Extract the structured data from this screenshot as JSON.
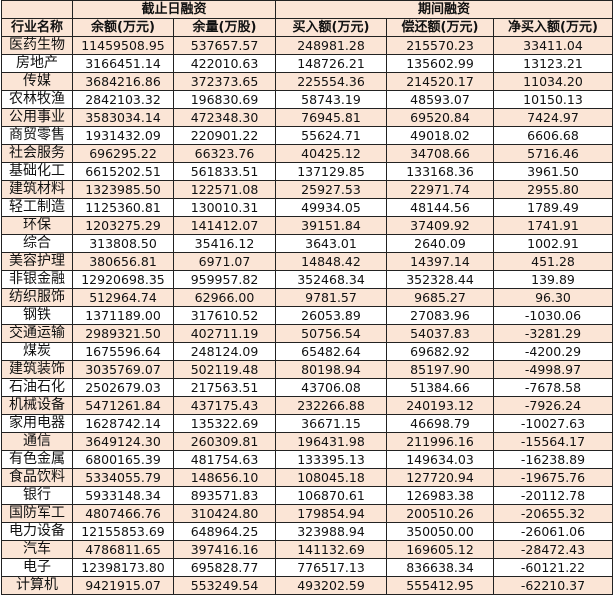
{
  "header": {
    "group_1": "截止日融资",
    "group_2": "期间融资",
    "columns": [
      "行业名称",
      "余额(万元)",
      "余量(万股)",
      "买入额(万元)",
      "偿还额(万元)",
      "净买入额(万元)"
    ]
  },
  "colors": {
    "row_shade": "#fbe5d6",
    "row_plain": "#ffffff",
    "border": "#222222"
  },
  "rows": [
    [
      "医药生物",
      "11459508.95",
      "537657.57",
      "248981.28",
      "215570.23",
      "33411.04"
    ],
    [
      "房地产",
      "3166451.14",
      "422010.63",
      "148726.21",
      "135602.99",
      "13123.21"
    ],
    [
      "传媒",
      "3684216.86",
      "372373.65",
      "225554.36",
      "214520.17",
      "11034.20"
    ],
    [
      "农林牧渔",
      "2842103.32",
      "196830.69",
      "58743.19",
      "48593.07",
      "10150.13"
    ],
    [
      "公用事业",
      "3583034.14",
      "472348.30",
      "76945.81",
      "69520.84",
      "7424.97"
    ],
    [
      "商贸零售",
      "1931432.09",
      "220901.22",
      "55624.71",
      "49018.02",
      "6606.68"
    ],
    [
      "社会服务",
      "696295.22",
      "66323.76",
      "40425.12",
      "34708.66",
      "5716.46"
    ],
    [
      "基础化工",
      "6615202.51",
      "561833.51",
      "137129.85",
      "133168.36",
      "3961.50"
    ],
    [
      "建筑材料",
      "1323985.50",
      "122571.08",
      "25927.53",
      "22971.74",
      "2955.80"
    ],
    [
      "轻工制造",
      "1125360.81",
      "130010.31",
      "49934.05",
      "48144.56",
      "1789.49"
    ],
    [
      "环保",
      "1203275.29",
      "141412.07",
      "39151.84",
      "37409.92",
      "1741.91"
    ],
    [
      "综合",
      "313808.50",
      "35416.12",
      "3643.01",
      "2640.09",
      "1002.91"
    ],
    [
      "美容护理",
      "380656.81",
      "6971.07",
      "14848.42",
      "14397.14",
      "451.28"
    ],
    [
      "非银金融",
      "12920698.35",
      "959957.82",
      "352468.34",
      "352328.44",
      "139.89"
    ],
    [
      "纺织服饰",
      "512964.74",
      "62966.00",
      "9781.57",
      "9685.27",
      "96.30"
    ],
    [
      "钢铁",
      "1371189.00",
      "317610.52",
      "26053.89",
      "27083.96",
      "-1030.06"
    ],
    [
      "交通运输",
      "2989321.50",
      "402711.19",
      "50756.54",
      "54037.83",
      "-3281.29"
    ],
    [
      "煤炭",
      "1675596.64",
      "248124.09",
      "65482.64",
      "69682.92",
      "-4200.29"
    ],
    [
      "建筑装饰",
      "3035769.07",
      "502119.48",
      "80198.94",
      "85197.90",
      "-4998.97"
    ],
    [
      "石油石化",
      "2502679.03",
      "217563.51",
      "43706.08",
      "51384.66",
      "-7678.58"
    ],
    [
      "机械设备",
      "5471261.84",
      "437175.43",
      "232266.88",
      "240193.12",
      "-7926.24"
    ],
    [
      "家用电器",
      "1628742.14",
      "135322.69",
      "36671.15",
      "46698.79",
      "-10027.63"
    ],
    [
      "通信",
      "3649124.30",
      "260309.81",
      "196431.98",
      "211996.16",
      "-15564.17"
    ],
    [
      "有色金属",
      "6800165.39",
      "481754.63",
      "133395.13",
      "149634.03",
      "-16238.89"
    ],
    [
      "食品饮料",
      "5334055.79",
      "148656.10",
      "108045.18",
      "127720.94",
      "-19675.76"
    ],
    [
      "银行",
      "5933148.34",
      "893571.83",
      "106870.61",
      "126983.38",
      "-20112.78"
    ],
    [
      "国防军工",
      "4807466.76",
      "310424.80",
      "179854.94",
      "200510.26",
      "-20655.32"
    ],
    [
      "电力设备",
      "12155853.69",
      "648964.25",
      "323988.94",
      "350050.00",
      "-26061.06"
    ],
    [
      "汽车",
      "4786811.65",
      "397416.16",
      "141132.69",
      "169605.12",
      "-28472.43"
    ],
    [
      "电子",
      "12398173.80",
      "695828.77",
      "776517.13",
      "836638.34",
      "-60121.22"
    ],
    [
      "计算机",
      "9421915.07",
      "553249.54",
      "493202.59",
      "555412.95",
      "-62210.37"
    ]
  ]
}
